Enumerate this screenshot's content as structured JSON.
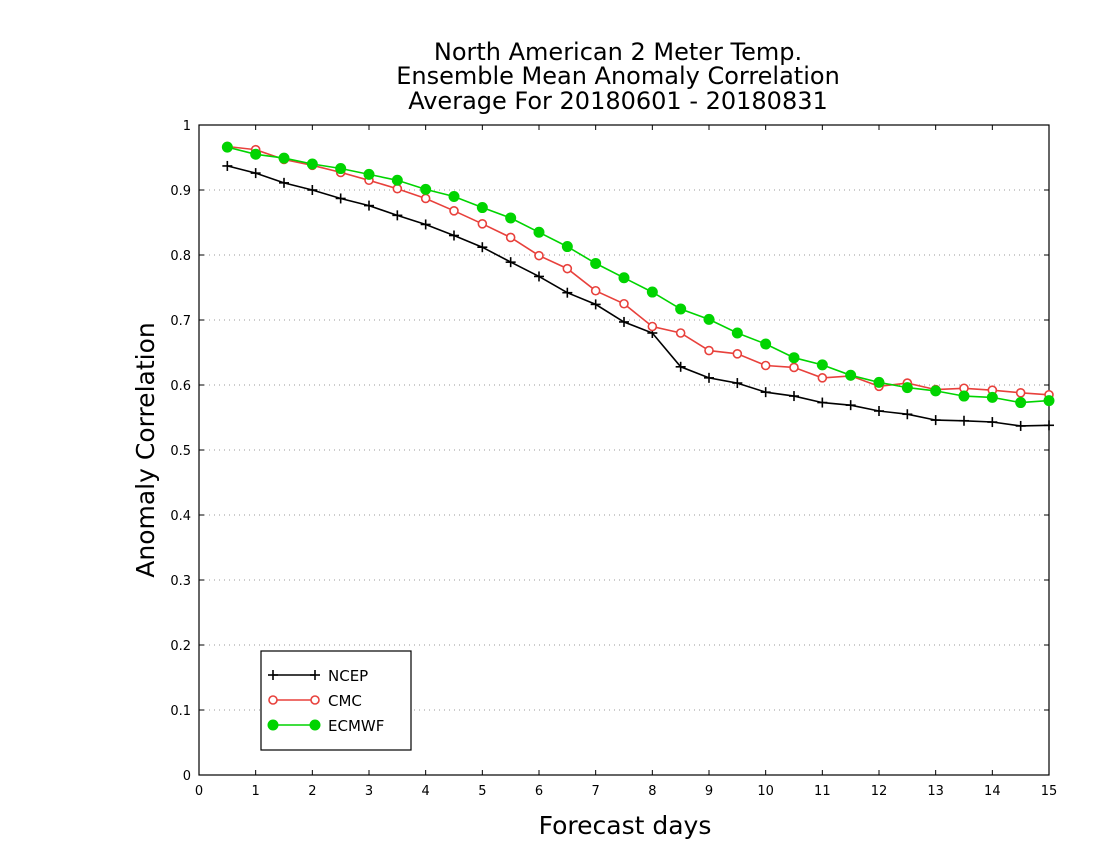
{
  "chart_data": {
    "type": "line",
    "title_lines": [
      "North American 2 Meter Temp.",
      "Ensemble Mean Anomaly Correlation",
      "Average For 20180601 - 20180831"
    ],
    "xlabel": "Forecast days",
    "ylabel": "Anomaly Correlation",
    "xlim": [
      0,
      15
    ],
    "ylim": [
      0,
      1
    ],
    "x_ticks": [
      "0",
      "1",
      "2",
      "3",
      "4",
      "5",
      "6",
      "7",
      "8",
      "9",
      "10",
      "11",
      "12",
      "13",
      "14",
      "15"
    ],
    "y_ticks": [
      "0",
      "0.1",
      "0.2",
      "0.3",
      "0.4",
      "0.5",
      "0.6",
      "0.7",
      "0.8",
      "0.9",
      "1"
    ],
    "grid": "horizontal-dotted",
    "legend_position": "bottom-left",
    "x": [
      0.5,
      1,
      1.5,
      2,
      2.5,
      3,
      3.5,
      4,
      4.5,
      5,
      5.5,
      6,
      6.5,
      7,
      7.5,
      8,
      8.5,
      9,
      9.5,
      10,
      10.5,
      11,
      11.5,
      12,
      12.5,
      13,
      13.5,
      14,
      14.5,
      15
    ],
    "series": [
      {
        "name": "NCEP",
        "color": "#000000",
        "marker": "plus",
        "values": [
          0.937,
          0.926,
          0.911,
          0.9,
          0.887,
          0.876,
          0.861,
          0.847,
          0.83,
          0.812,
          0.789,
          0.767,
          0.742,
          0.724,
          0.697,
          0.68,
          0.628,
          0.611,
          0.603,
          0.589,
          0.583,
          0.573,
          0.569,
          0.56,
          0.555,
          0.546,
          0.545,
          0.543,
          0.537,
          0.538
        ]
      },
      {
        "name": "CMC",
        "color": "#e8413c",
        "marker": "open-circle",
        "values": [
          0.967,
          0.962,
          0.947,
          0.938,
          0.927,
          0.915,
          0.902,
          0.887,
          0.868,
          0.848,
          0.827,
          0.799,
          0.779,
          0.745,
          0.725,
          0.69,
          0.68,
          0.653,
          0.648,
          0.63,
          0.627,
          0.611,
          0.614,
          0.598,
          0.603,
          0.593,
          0.595,
          0.592,
          0.588,
          0.585
        ]
      },
      {
        "name": "ECMWF",
        "color": "#00d400",
        "marker": "filled-circle",
        "values": [
          0.966,
          0.955,
          0.949,
          0.94,
          0.933,
          0.924,
          0.915,
          0.901,
          0.89,
          0.873,
          0.857,
          0.835,
          0.813,
          0.787,
          0.765,
          0.743,
          0.717,
          0.701,
          0.68,
          0.663,
          0.642,
          0.631,
          0.615,
          0.604,
          0.596,
          0.591,
          0.583,
          0.581,
          0.573,
          0.576
        ]
      }
    ]
  }
}
